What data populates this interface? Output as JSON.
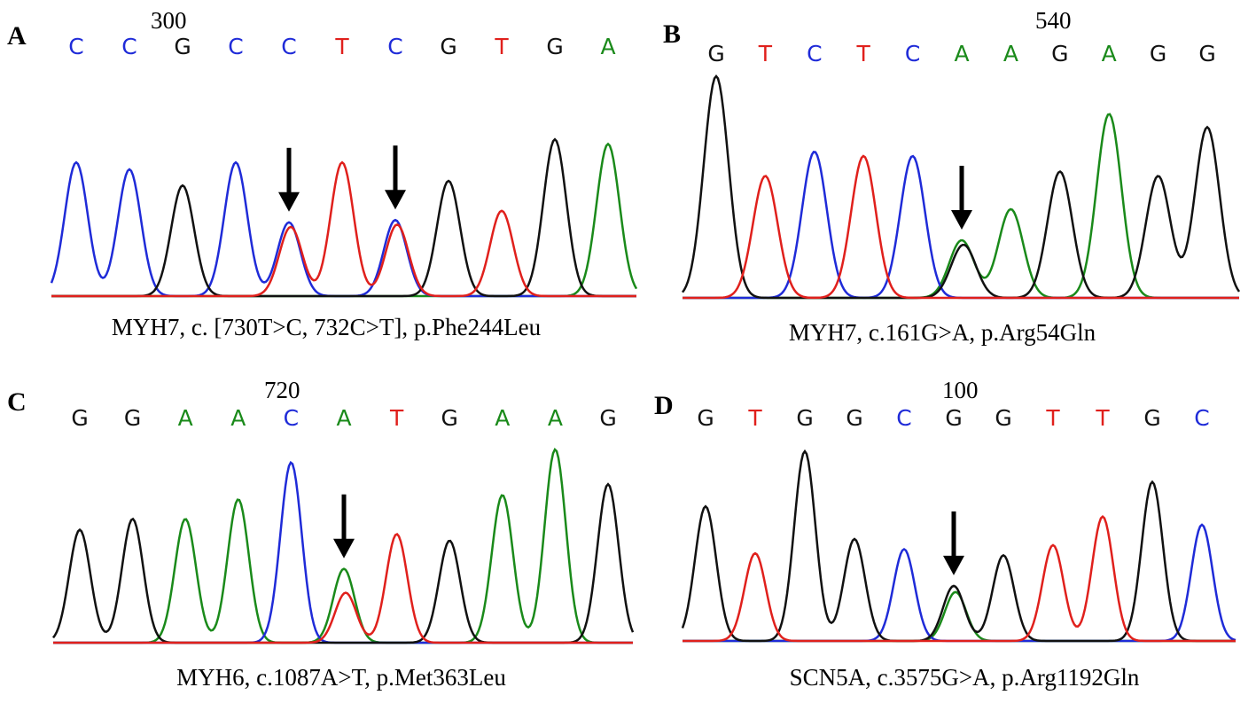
{
  "colors": {
    "A": "#1a8a1a",
    "C": "#1f2bd8",
    "G": "#111111",
    "T": "#e0201c"
  },
  "panels": [
    {
      "letter": "A",
      "position_label": "300",
      "bases": [
        "C",
        "C",
        "G",
        "C",
        "C",
        "T",
        "C",
        "G",
        "T",
        "G",
        "A"
      ],
      "caption": "MYH7, c. [730T>C, 732C>T], p.Phe244Leu",
      "peaks": [
        {
          "base": "C",
          "h": 0.58
        },
        {
          "base": "C",
          "h": 0.55
        },
        {
          "base": "G",
          "h": 0.48
        },
        {
          "base": "C",
          "h": 0.58
        },
        {
          "base": "C",
          "h": 0.32,
          "second": {
            "base": "T",
            "h": 0.3
          }
        },
        {
          "base": "T",
          "h": 0.58
        },
        {
          "base": "C",
          "h": 0.33,
          "second": {
            "base": "T",
            "h": 0.31
          }
        },
        {
          "base": "G",
          "h": 0.5
        },
        {
          "base": "T",
          "h": 0.37
        },
        {
          "base": "G",
          "h": 0.68
        },
        {
          "base": "A",
          "h": 0.66
        }
      ],
      "arrows": [
        4,
        6
      ]
    },
    {
      "letter": "B",
      "position_label": "540",
      "bases": [
        "G",
        "T",
        "C",
        "T",
        "C",
        "A",
        "A",
        "G",
        "A",
        "G",
        "G"
      ],
      "caption": "MYH7, c.161G>A, p.Arg54Gln",
      "peaks": [
        {
          "base": "G",
          "h": 1.0
        },
        {
          "base": "T",
          "h": 0.55
        },
        {
          "base": "C",
          "h": 0.66
        },
        {
          "base": "T",
          "h": 0.64
        },
        {
          "base": "C",
          "h": 0.64
        },
        {
          "base": "A",
          "h": 0.26,
          "second": {
            "base": "G",
            "h": 0.24
          }
        },
        {
          "base": "A",
          "h": 0.4
        },
        {
          "base": "G",
          "h": 0.57
        },
        {
          "base": "A",
          "h": 0.83
        },
        {
          "base": "G",
          "h": 0.55
        },
        {
          "base": "G",
          "h": 0.77
        }
      ],
      "arrows": [
        5
      ]
    },
    {
      "letter": "C",
      "position_label": "720",
      "bases": [
        "G",
        "G",
        "A",
        "A",
        "C",
        "A",
        "T",
        "G",
        "A",
        "A",
        "G"
      ],
      "caption": "MYH6, c.1087A>T, p.Met363Leu",
      "peaks": [
        {
          "base": "G",
          "h": 0.52
        },
        {
          "base": "G",
          "h": 0.57
        },
        {
          "base": "A",
          "h": 0.57
        },
        {
          "base": "A",
          "h": 0.66
        },
        {
          "base": "C",
          "h": 0.83
        },
        {
          "base": "A",
          "h": 0.34,
          "second": {
            "base": "T",
            "h": 0.23
          }
        },
        {
          "base": "T",
          "h": 0.5
        },
        {
          "base": "G",
          "h": 0.47
        },
        {
          "base": "A",
          "h": 0.68
        },
        {
          "base": "A",
          "h": 0.89
        },
        {
          "base": "G",
          "h": 0.73
        }
      ],
      "arrows": [
        5
      ]
    },
    {
      "letter": "D",
      "position_label": "100",
      "bases": [
        "G",
        "T",
        "G",
        "G",
        "C",
        "G",
        "G",
        "T",
        "T",
        "G",
        "C"
      ],
      "caption": "SCN5A, c.3575G>A, p.Arg1192Gln",
      "peaks": [
        {
          "base": "G",
          "h": 0.66
        },
        {
          "base": "T",
          "h": 0.43
        },
        {
          "base": "G",
          "h": 0.93
        },
        {
          "base": "G",
          "h": 0.5
        },
        {
          "base": "C",
          "h": 0.45
        },
        {
          "base": "G",
          "h": 0.27,
          "second": {
            "base": "A",
            "h": 0.24
          }
        },
        {
          "base": "G",
          "h": 0.42
        },
        {
          "base": "T",
          "h": 0.47
        },
        {
          "base": "T",
          "h": 0.61
        },
        {
          "base": "G",
          "h": 0.78
        },
        {
          "base": "C",
          "h": 0.57
        }
      ],
      "arrows": [
        5
      ]
    }
  ]
}
